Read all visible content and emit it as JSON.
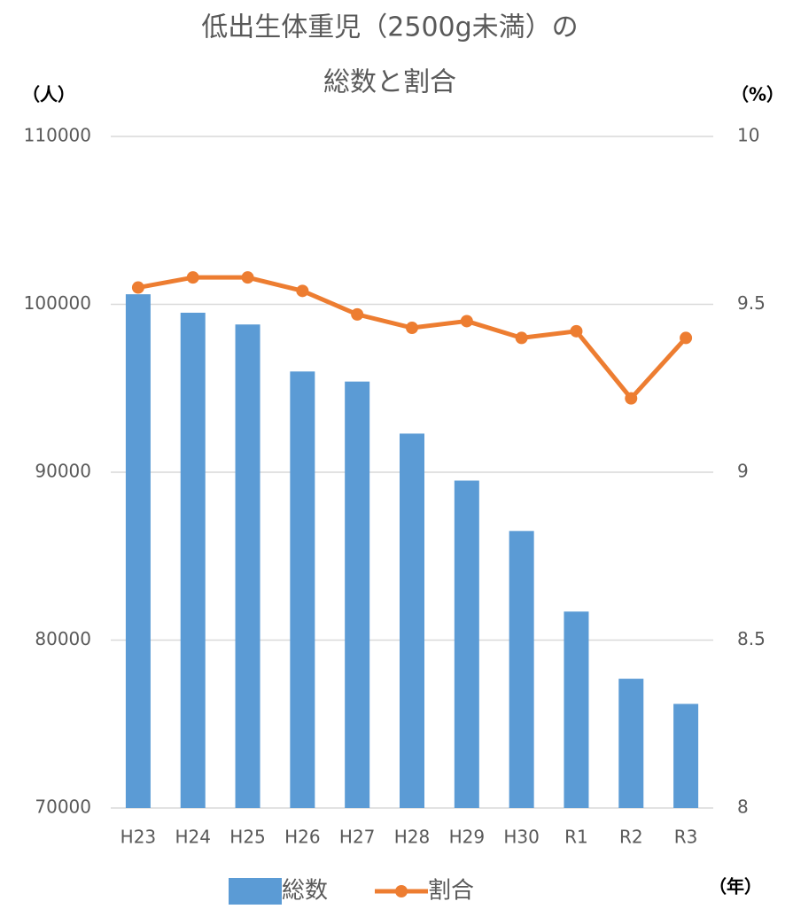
{
  "chart_data": {
    "type": "bar_line",
    "title": [
      "低出生体重児（2500g未満）の",
      "総数と割合"
    ],
    "y_label": "（人）",
    "y2_label": "（%）",
    "x_label": "（年）",
    "categories": [
      "H23",
      "H24",
      "H25",
      "H26",
      "H27",
      "H28",
      "H29",
      "H30",
      "R1",
      "R2",
      "R3"
    ],
    "series": [
      {
        "name": "総数",
        "type": "bar",
        "color": "#5b9bd5",
        "axis": "y",
        "values": [
          100600,
          99500,
          98800,
          96000,
          95400,
          92300,
          89500,
          86500,
          81700,
          77700,
          76200
        ]
      },
      {
        "name": "割合",
        "type": "line",
        "color": "#ed7d31",
        "axis": "y2",
        "values": [
          9.55,
          9.58,
          9.58,
          9.54,
          9.47,
          9.43,
          9.45,
          9.4,
          9.42,
          9.22,
          9.4
        ]
      }
    ],
    "ylim": [
      70000,
      110000
    ],
    "yticks": [
      70000,
      80000,
      90000,
      100000,
      110000
    ],
    "y2lim": [
      8,
      10
    ],
    "y2ticks": [
      8,
      8.5,
      9,
      9.5,
      10
    ],
    "grid": true,
    "legend": "bottom"
  }
}
